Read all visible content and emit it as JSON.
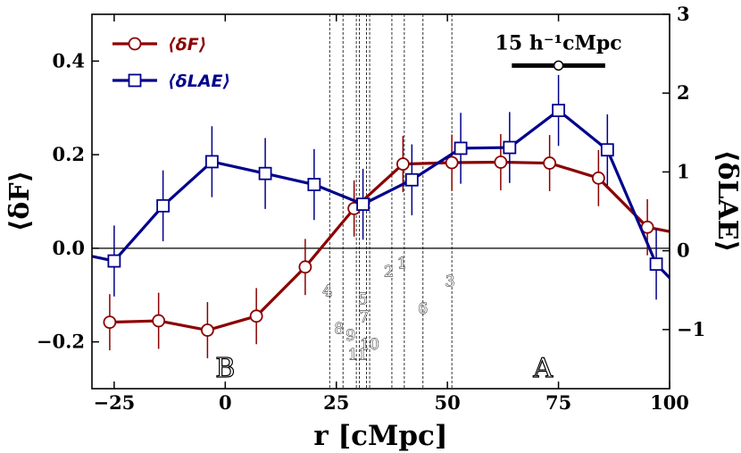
{
  "chart_data": {
    "type": "line",
    "xlabel": "r [cMpc]",
    "ylabel_left": "⟨δF⟩",
    "ylabel_right": "⟨δLAE⟩",
    "xlim": [
      -30,
      100
    ],
    "ylim_left": [
      -0.3,
      0.5
    ],
    "ylim_right": [
      -1.75,
      3
    ],
    "xticks": [
      -25,
      0,
      25,
      50,
      75,
      100
    ],
    "yticks_left": [
      -0.2,
      0.0,
      0.2,
      0.4
    ],
    "yticks_right": [
      -1,
      0,
      1,
      2,
      3
    ],
    "xtick_labels": [
      "−25",
      "0",
      "25",
      "50",
      "75",
      "100"
    ],
    "ytick_labels_left": [
      "−0.2",
      "0.0",
      "0.2",
      "0.4"
    ],
    "ytick_labels_right": [
      "−1",
      "0",
      "1",
      "2",
      "3"
    ],
    "zero_line": true,
    "legend": {
      "placement": "top-left"
    },
    "series": [
      {
        "name": "⟨δF⟩",
        "axis": "left",
        "color": "#8b0000",
        "marker": "circle",
        "x": [
          -26,
          -15,
          -4,
          7,
          18,
          29,
          40,
          51,
          62,
          73,
          84,
          95,
          106
        ],
        "y": [
          -0.158,
          -0.155,
          -0.175,
          -0.145,
          -0.04,
          0.085,
          0.18,
          0.183,
          0.184,
          0.182,
          0.15,
          0.045,
          0.025
        ],
        "yerr": [
          0.06,
          0.06,
          0.06,
          0.06,
          0.06,
          0.06,
          0.06,
          0.06,
          0.06,
          0.06,
          0.06,
          0.06,
          0.06
        ]
      },
      {
        "name": "⟨δLAE⟩",
        "axis": "right",
        "color": "#00008b",
        "marker": "square",
        "x": [
          -36,
          -25,
          -14,
          -3,
          9,
          20,
          31,
          42,
          53,
          64,
          75,
          86,
          97,
          108
        ],
        "y": [
          0.0,
          -0.13,
          0.57,
          1.13,
          0.98,
          0.84,
          0.59,
          0.9,
          1.3,
          1.31,
          1.78,
          1.28,
          -0.17,
          -0.8
        ],
        "yerr": [
          0.45,
          0.45,
          0.45,
          0.45,
          0.45,
          0.45,
          0.45,
          0.45,
          0.45,
          0.45,
          0.45,
          0.45,
          0.45,
          0.45
        ]
      }
    ],
    "vertical_lines_x": [
      23.5,
      26.5,
      29.5,
      30.2,
      31.8,
      32.5,
      37.5,
      40.3,
      44.5,
      51.0
    ],
    "annotations": [
      {
        "text": "1",
        "x": 39.8,
        "y_right": -0.22
      },
      {
        "text": "2",
        "x": 36.8,
        "y_right": -0.33
      },
      {
        "text": "3",
        "x": 50.6,
        "y_right": -0.45
      },
      {
        "text": "4",
        "x": 23.0,
        "y_right": -0.57
      },
      {
        "text": "5",
        "x": 31.0,
        "y_right": -0.68
      },
      {
        "text": "6",
        "x": 44.5,
        "y_right": -0.8
      },
      {
        "text": "7",
        "x": 31.3,
        "y_right": -0.9
      },
      {
        "text": "8",
        "x": 25.6,
        "y_right": -1.05
      },
      {
        "text": "9",
        "x": 28.2,
        "y_right": -1.14
      },
      {
        "text": "10",
        "x": 32.5,
        "y_right": -1.25
      },
      {
        "text": "11",
        "x": 29.8,
        "y_right": -1.38
      }
    ],
    "region_labels": [
      {
        "text": "B",
        "x": 0,
        "y_right": -1.6
      },
      {
        "text": "A",
        "x": 71.5,
        "y_right": -1.6
      }
    ],
    "scale_bar": {
      "label": "15 h⁻¹cMpc",
      "x_start": 64.5,
      "x_end": 85.5,
      "y_right": 2.35
    }
  }
}
